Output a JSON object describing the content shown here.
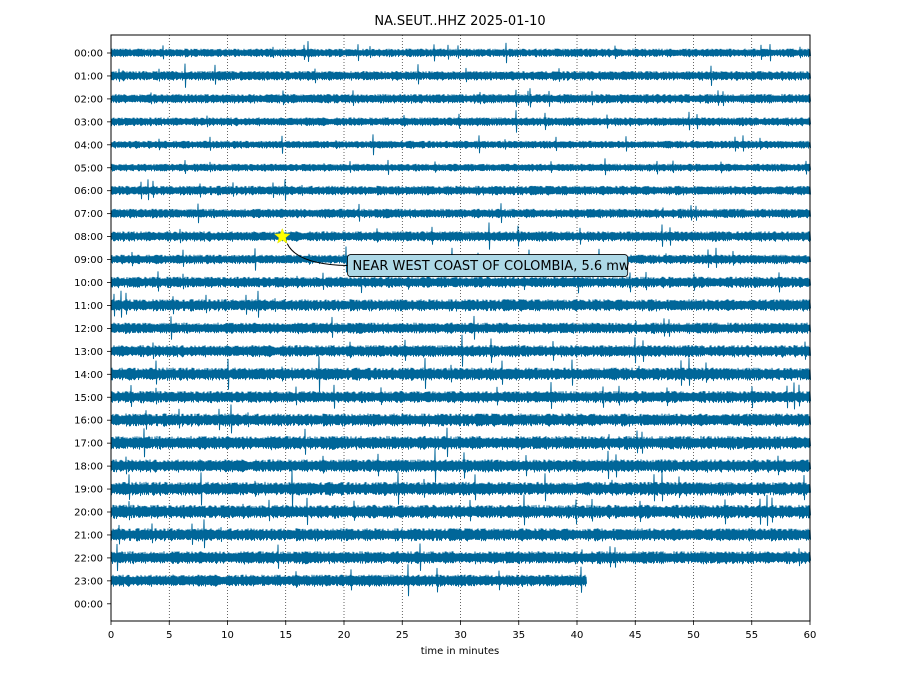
{
  "chart_data": {
    "type": "line",
    "title": "NA.SEUT..HHZ 2025-01-10",
    "xlabel": "time in minutes",
    "ylabel": "",
    "xlim": [
      0,
      60
    ],
    "x_ticks": [
      0,
      5,
      10,
      15,
      20,
      25,
      30,
      35,
      40,
      45,
      50,
      55,
      60
    ],
    "y_tick_labels": [
      "00:00",
      "01:00",
      "02:00",
      "03:00",
      "04:00",
      "05:00",
      "06:00",
      "07:00",
      "08:00",
      "09:00",
      "10:00",
      "11:00",
      "12:00",
      "13:00",
      "14:00",
      "15:00",
      "16:00",
      "17:00",
      "18:00",
      "19:00",
      "20:00",
      "21:00",
      "22:00",
      "23:00",
      "00:00"
    ],
    "grid": "vertical dotted",
    "trace_color": "#006699",
    "trace_rows": [
      {
        "hour": "00:00",
        "end_minute": 60,
        "relative_amplitude": 0.45
      },
      {
        "hour": "01:00",
        "end_minute": 60,
        "relative_amplitude": 0.5
      },
      {
        "hour": "02:00",
        "end_minute": 60,
        "relative_amplitude": 0.5
      },
      {
        "hour": "03:00",
        "end_minute": 60,
        "relative_amplitude": 0.45
      },
      {
        "hour": "04:00",
        "end_minute": 60,
        "relative_amplitude": 0.4
      },
      {
        "hour": "05:00",
        "end_minute": 60,
        "relative_amplitude": 0.4
      },
      {
        "hour": "06:00",
        "end_minute": 60,
        "relative_amplitude": 0.5
      },
      {
        "hour": "07:00",
        "end_minute": 60,
        "relative_amplitude": 0.5
      },
      {
        "hour": "08:00",
        "end_minute": 60,
        "relative_amplitude": 0.55
      },
      {
        "hour": "09:00",
        "end_minute": 60,
        "relative_amplitude": 0.5
      },
      {
        "hour": "10:00",
        "end_minute": 60,
        "relative_amplitude": 0.6
      },
      {
        "hour": "11:00",
        "end_minute": 60,
        "relative_amplitude": 0.65
      },
      {
        "hour": "12:00",
        "end_minute": 60,
        "relative_amplitude": 0.6
      },
      {
        "hour": "13:00",
        "end_minute": 60,
        "relative_amplitude": 0.65
      },
      {
        "hour": "14:00",
        "end_minute": 60,
        "relative_amplitude": 0.7
      },
      {
        "hour": "15:00",
        "end_minute": 60,
        "relative_amplitude": 0.65
      },
      {
        "hour": "16:00",
        "end_minute": 60,
        "relative_amplitude": 0.7
      },
      {
        "hour": "17:00",
        "end_minute": 60,
        "relative_amplitude": 0.75
      },
      {
        "hour": "18:00",
        "end_minute": 60,
        "relative_amplitude": 0.7
      },
      {
        "hour": "19:00",
        "end_minute": 60,
        "relative_amplitude": 0.75
      },
      {
        "hour": "20:00",
        "end_minute": 60,
        "relative_amplitude": 0.75
      },
      {
        "hour": "21:00",
        "end_minute": 60,
        "relative_amplitude": 0.7
      },
      {
        "hour": "22:00",
        "end_minute": 60,
        "relative_amplitude": 0.7
      },
      {
        "hour": "23:00",
        "end_minute": 40.8,
        "relative_amplitude": 0.65
      }
    ],
    "event_marker": {
      "hour": "08:00",
      "minute": 14.7,
      "marker": "star",
      "marker_color": "#ffff00"
    },
    "annotation": {
      "text": "NEAR WEST COAST OF COLOMBIA, 5.6 mw",
      "box_fill": "#add8e6"
    }
  }
}
